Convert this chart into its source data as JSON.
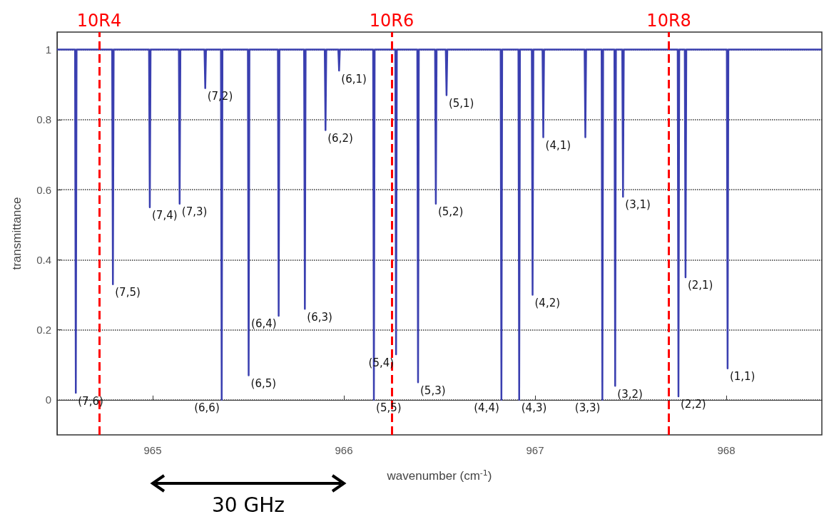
{
  "chart_data": {
    "type": "line",
    "xlabel": "wavenumber (cm$^{-1}$)",
    "ylabel": "transmittance",
    "x": [
      964.5,
      964.594,
      964.598,
      964.602,
      964.788,
      964.792,
      964.796,
      964.981,
      964.985,
      964.989,
      965.137,
      965.141,
      965.145,
      965.271,
      965.275,
      965.279,
      965.357,
      965.361,
      965.365,
      965.498,
      965.502,
      965.506,
      965.655,
      965.659,
      965.663,
      965.792,
      965.796,
      965.8,
      965.9,
      965.904,
      965.908,
      965.971,
      965.975,
      965.979,
      966.153,
      966.157,
      966.161,
      966.269,
      966.273,
      966.277,
      966.384,
      966.388,
      966.392,
      966.477,
      966.481,
      966.485,
      966.533,
      966.537,
      966.541,
      966.82,
      966.824,
      966.828,
      966.913,
      966.917,
      966.921,
      966.983,
      966.987,
      966.991,
      967.039,
      967.043,
      967.047,
      967.259,
      967.263,
      967.267,
      967.348,
      967.352,
      967.356,
      967.415,
      967.419,
      967.423,
      967.456,
      967.46,
      967.464,
      967.746,
      967.75,
      967.754,
      967.783,
      967.787,
      967.791,
      968.003,
      968.007,
      968.011,
      968.5
    ],
    "series": [
      {
        "color": "#3a3fb0",
        "values": [
          1,
          1,
          0.02,
          1,
          1,
          0.33,
          1,
          1,
          0.55,
          1,
          1,
          0.56,
          1,
          1,
          0.89,
          1,
          1,
          0.0,
          1,
          1,
          0.07,
          1,
          1,
          0.24,
          1,
          1,
          0.26,
          1,
          1,
          0.77,
          1,
          1,
          0.94,
          1,
          1,
          0.0,
          1,
          1,
          0.13,
          1,
          1,
          0.05,
          1,
          1,
          0.56,
          1,
          1,
          0.87,
          1,
          1,
          0.0,
          1,
          1,
          0.0,
          1,
          1,
          0.3,
          1,
          1,
          0.75,
          1,
          1,
          0.75,
          1,
          1,
          0.0,
          1,
          1,
          0.04,
          1,
          1,
          0.58,
          1,
          1,
          0.01,
          1,
          1,
          0.35,
          1,
          1,
          0.09,
          1,
          1
        ]
      }
    ],
    "xlim": [
      964.5,
      968.5
    ],
    "xticks": [
      965,
      966,
      967,
      968
    ],
    "ylim": [
      -0.1,
      1.05
    ],
    "yticks": [
      0,
      0.2,
      0.4,
      0.6,
      0.8,
      1
    ],
    "grid": "y",
    "marker": "none",
    "line_style": "solid",
    "ref_lines": [
      {
        "axis": "x",
        "value": 964.72,
        "label": "10R4",
        "color": "#ff0000",
        "line_style": "dashed"
      },
      {
        "axis": "x",
        "value": 966.254,
        "label": "10R6",
        "color": "#ff0000",
        "line_style": "dashed"
      },
      {
        "axis": "x",
        "value": 967.698,
        "label": "10R8",
        "color": "#ff0000",
        "line_style": "dashed"
      }
    ],
    "annotations": [
      "30 GHz",
      {
        "text": "(7,6)",
        "x": 964.598,
        "y": 0.02
      },
      {
        "text": "(7,5)",
        "x": 964.792,
        "y": 0.33
      },
      {
        "text": "(7,4)",
        "x": 964.985,
        "y": 0.55
      },
      {
        "text": "(7,3)",
        "x": 965.141,
        "y": 0.56
      },
      {
        "text": "(7,2)",
        "x": 965.275,
        "y": 0.89
      },
      {
        "text": "(6,6)",
        "x": 965.361,
        "y": 0.0
      },
      {
        "text": "(6,5)",
        "x": 965.502,
        "y": 0.07
      },
      {
        "text": "(6,4)",
        "x": 965.659,
        "y": 0.24
      },
      {
        "text": "(6,3)",
        "x": 965.796,
        "y": 0.26
      },
      {
        "text": "(6,2)",
        "x": 965.904,
        "y": 0.77
      },
      {
        "text": "(6,1)",
        "x": 965.975,
        "y": 0.94
      },
      {
        "text": "(5,5)",
        "x": 966.157,
        "y": 0.0
      },
      {
        "text": "(5,4)",
        "x": 966.273,
        "y": 0.13
      },
      {
        "text": "(5,3)",
        "x": 966.388,
        "y": 0.05
      },
      {
        "text": "(5,2)",
        "x": 966.481,
        "y": 0.56
      },
      {
        "text": "(5,1)",
        "x": 966.537,
        "y": 0.87
      },
      {
        "text": "(4,4)",
        "x": 966.824,
        "y": 0.0
      },
      {
        "text": "(4,3)",
        "x": 966.917,
        "y": 0.0
      },
      {
        "text": "(4,2)",
        "x": 966.987,
        "y": 0.3
      },
      {
        "text": "(4,1)",
        "x": 967.043,
        "y": 0.75
      },
      {
        "text": "(3,3)",
        "x": 967.352,
        "y": 0.0
      },
      {
        "text": "(3,2)",
        "x": 967.419,
        "y": 0.04
      },
      {
        "text": "(3,1)",
        "x": 967.46,
        "y": 0.58
      },
      {
        "text": "(2,2)",
        "x": 967.75,
        "y": 0.01
      },
      {
        "text": "(2,1)",
        "x": 967.787,
        "y": 0.35
      },
      {
        "text": "(1,1)",
        "x": 968.007,
        "y": 0.09
      }
    ]
  }
}
